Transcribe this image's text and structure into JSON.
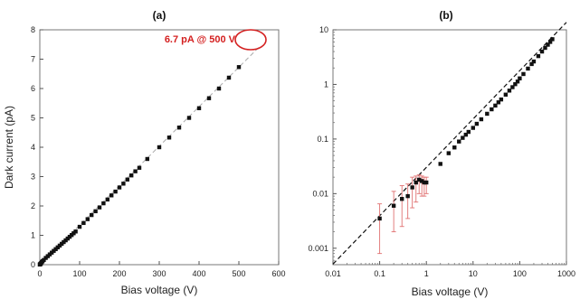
{
  "chart_data": [
    {
      "panel": "a",
      "type": "scatter",
      "title": "(a)",
      "xlabel": "Bias voltage (V)",
      "ylabel": "Dark current (pA)",
      "xlim": [
        0,
        600
      ],
      "ylim": [
        0,
        8
      ],
      "xticks": [
        0,
        100,
        200,
        300,
        400,
        500,
        600
      ],
      "yticks": [
        0,
        1,
        2,
        3,
        4,
        5,
        6,
        7,
        8
      ],
      "grid": false,
      "fit_line": {
        "style": "dashed",
        "color": "#aaaaaa",
        "x": [
          0,
          550
        ],
        "y": [
          0,
          7.4
        ]
      },
      "annotation": {
        "text": "6.7 pA @ 500 V",
        "x": 500,
        "y": 6.73,
        "color": "#d42020"
      },
      "series": [
        {
          "x": [
            0.1,
            0.2,
            0.3,
            0.5,
            0.7,
            1,
            2,
            3,
            5,
            7,
            10,
            15,
            20,
            25,
            30,
            35,
            40,
            45,
            50,
            55,
            60,
            65,
            70,
            75,
            80,
            85,
            90,
            100,
            110,
            120,
            130,
            140,
            150,
            160,
            170,
            180,
            190,
            200,
            210,
            220,
            230,
            240,
            250,
            270,
            300,
            325,
            350,
            375,
            400,
            425,
            450,
            475,
            500
          ],
          "y": [
            0.004,
            0.006,
            0.008,
            0.009,
            0.012,
            0.016,
            0.035,
            0.05,
            0.09,
            0.12,
            0.16,
            0.23,
            0.29,
            0.35,
            0.41,
            0.47,
            0.53,
            0.59,
            0.65,
            0.71,
            0.77,
            0.83,
            0.89,
            0.95,
            1.01,
            1.07,
            1.13,
            1.29,
            1.42,
            1.55,
            1.69,
            1.82,
            1.95,
            2.09,
            2.22,
            2.36,
            2.49,
            2.63,
            2.76,
            2.9,
            3.04,
            3.18,
            3.3,
            3.6,
            4.0,
            4.33,
            4.67,
            5.0,
            5.33,
            5.67,
            6.0,
            6.37,
            6.73
          ]
        }
      ]
    },
    {
      "panel": "b",
      "type": "scatter",
      "title": "(b)",
      "xlabel": "Bias voltage (V)",
      "xscale": "log",
      "yscale": "log",
      "xlim": [
        0.01,
        1000
      ],
      "ylim": [
        0.0005,
        10
      ],
      "xticks": [
        0.01,
        0.1,
        1,
        10,
        100,
        1000
      ],
      "xticklabels": [
        "0.01",
        "0.1",
        "1",
        "10",
        "100",
        "1000"
      ],
      "yticks": [
        0.001,
        0.01,
        0.1,
        1,
        10
      ],
      "yticklabels": [
        "0.001",
        "0.01",
        "0.1",
        "1",
        "10"
      ],
      "grid": false,
      "fit_line": {
        "style": "dashed",
        "color": "#111111",
        "x": [
          0.01,
          1000
        ],
        "y": [
          0.000513,
          13.7
        ]
      },
      "error_color": "#e07070",
      "series": [
        {
          "x": [
            0.1,
            0.2,
            0.3,
            0.4,
            0.5,
            0.6,
            0.7,
            0.8,
            0.9,
            1,
            2,
            3,
            4,
            5,
            6,
            7,
            8,
            10,
            12,
            15,
            20,
            25,
            30,
            35,
            40,
            50,
            60,
            70,
            80,
            90,
            100,
            120,
            150,
            180,
            200,
            250,
            300,
            350,
            400,
            450,
            500
          ],
          "y": [
            0.0035,
            0.006,
            0.008,
            0.009,
            0.013,
            0.016,
            0.018,
            0.017,
            0.016,
            0.016,
            0.035,
            0.055,
            0.07,
            0.09,
            0.105,
            0.12,
            0.135,
            0.16,
            0.19,
            0.23,
            0.29,
            0.35,
            0.41,
            0.47,
            0.53,
            0.65,
            0.77,
            0.89,
            1.01,
            1.13,
            1.29,
            1.55,
            1.95,
            2.36,
            2.63,
            3.3,
            4.0,
            4.67,
            5.33,
            6.0,
            6.73
          ],
          "err_low": [
            0.0008,
            0.002,
            0.0025,
            0.0035,
            0.0055,
            0.007,
            0.01,
            0.009,
            0.009,
            0.01,
            0,
            0,
            0,
            0,
            0,
            0,
            0,
            0,
            0,
            0,
            0,
            0,
            0,
            0,
            0,
            0,
            0,
            0,
            0,
            0,
            0,
            0,
            0,
            0,
            0,
            0,
            0,
            0,
            0,
            0,
            0
          ],
          "err_high": [
            0.0065,
            0.011,
            0.014,
            0.015,
            0.02,
            0.021,
            0.022,
            0.021,
            0.02,
            0.02,
            0,
            0,
            0,
            0,
            0,
            0,
            0,
            0,
            0,
            0,
            0,
            0,
            0,
            0,
            0,
            0,
            0,
            0,
            0,
            0,
            0,
            0,
            0,
            0,
            0,
            0,
            0,
            0,
            0,
            0,
            0
          ]
        }
      ]
    }
  ]
}
